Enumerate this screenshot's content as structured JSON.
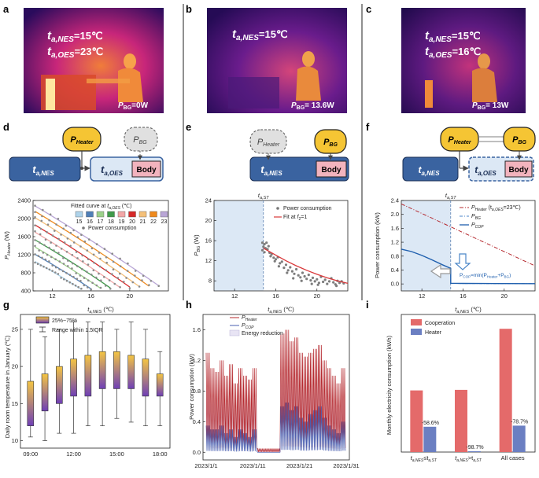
{
  "panel_labels": [
    "a",
    "b",
    "c",
    "d",
    "e",
    "f",
    "g",
    "h",
    "i"
  ],
  "thermal": {
    "a": {
      "line1_var": "t",
      "line1_sub": "a,NES",
      "line1_val": "=15℃",
      "line2_var": "t",
      "line2_sub": "a,OES",
      "line2_val": "=23℃",
      "pbg_val": "=0W"
    },
    "b": {
      "line1_var": "t",
      "line1_sub": "a,NES",
      "line1_val": "=15℃",
      "pbg_val": "= 13.6W"
    },
    "c": {
      "line1_var": "t",
      "line1_sub": "a,NES",
      "line1_val": "=15℃",
      "line2_var": "t",
      "line2_sub": "a,OES",
      "line2_val": "=16℃",
      "pbg_val": "= 13W"
    },
    "pbg_var": "P",
    "pbg_sub": "BG"
  },
  "diagram": {
    "p": "P",
    "heater_sub": "Heater",
    "bg_sub": "BG",
    "t": "t",
    "nes_sub": "a,NES",
    "oes_sub": "a,OES",
    "body": "Body"
  },
  "colors": {
    "heater_fill": "#f5c534",
    "room_blue": "#3a63a0",
    "room_light": "#dce8f5",
    "body_pink": "#f2b3bd",
    "fit_red": "#d9383a",
    "shade": "#dce8f5",
    "cop_blue": "#1f5fae",
    "heater_darkred": "#b5282e"
  },
  "chart_data": [
    {
      "panel": "d",
      "type": "scatter",
      "ylabel_var": "P",
      "ylabel_sub": "Heater",
      "ylabel_unit": " (W)",
      "xlabel_var": "t",
      "xlabel_sub": "a,NES",
      "xlabel_unit": " (℃)",
      "xlim": [
        10,
        24
      ],
      "ylim": [
        400,
        2400
      ],
      "xticks": [
        12,
        16,
        20
      ],
      "yticks": [
        400,
        800,
        1200,
        1600,
        2000,
        2400
      ],
      "legend_title_pre": "Fitted curve at ",
      "legend_title_var": "t",
      "legend_title_sub": "a,OES",
      "legend_title_unit": " (℃)",
      "legend_power": "Power consumption",
      "series": [
        {
          "name": "15",
          "color": "#aed3ea",
          "x0": 10.2,
          "y0": 1050,
          "x1": 15,
          "y1": 430
        },
        {
          "name": "16",
          "color": "#4f7fb8",
          "x0": 10.2,
          "y0": 1210,
          "x1": 16,
          "y1": 445
        },
        {
          "name": "17",
          "color": "#9cd08a",
          "x0": 10.2,
          "y0": 1370,
          "x1": 17,
          "y1": 455
        },
        {
          "name": "18",
          "color": "#3f9a4a",
          "x0": 10.2,
          "y0": 1530,
          "x1": 18,
          "y1": 465
        },
        {
          "name": "19",
          "color": "#f2a7a7",
          "x0": 10.2,
          "y0": 1700,
          "x1": 19,
          "y1": 475
        },
        {
          "name": "20",
          "color": "#d62a2a",
          "x0": 10.2,
          "y0": 1860,
          "x1": 20,
          "y1": 485
        },
        {
          "name": "21",
          "color": "#f4c07a",
          "x0": 10.2,
          "y0": 2020,
          "x1": 21,
          "y1": 495
        },
        {
          "name": "22",
          "color": "#ef8a1e",
          "x0": 10.2,
          "y0": 2160,
          "x1": 22,
          "y1": 505
        },
        {
          "name": "23",
          "color": "#b9a6d6",
          "x0": 10.2,
          "y0": 2280,
          "x1": 23,
          "y1": 515
        }
      ]
    },
    {
      "panel": "e",
      "type": "scatter",
      "ylabel_var": "P",
      "ylabel_sub": "BG",
      "ylabel_unit": " (W)",
      "xlabel_var": "t",
      "xlabel_sub": "a,NES",
      "xlabel_unit": " (℃)",
      "xlim": [
        10,
        23
      ],
      "ylim": [
        6,
        24
      ],
      "xticks": [
        12,
        16,
        20
      ],
      "yticks": [
        8,
        12,
        16,
        20,
        24
      ],
      "tst_label_var": "t",
      "tst_label_sub": "a,ST",
      "tst": 14.8,
      "legend_points": "Power consumption",
      "legend_fit_pre": "Fit at ",
      "legend_fit_var": "f",
      "legend_fit_sub": "2",
      "legend_fit_post": "=1",
      "fit": {
        "x": [
          14.8,
          16,
          17,
          18,
          19,
          20,
          21,
          22,
          23
        ],
        "y": [
          14.5,
          13.1,
          12.0,
          11.0,
          10.1,
          9.3,
          8.6,
          8.0,
          7.5
        ]
      },
      "points": [
        [
          14.7,
          15.6
        ],
        [
          14.9,
          15.3
        ],
        [
          14.8,
          14.8
        ],
        [
          15.0,
          14.5
        ],
        [
          14.7,
          14.1
        ],
        [
          15.1,
          15.6
        ],
        [
          15.2,
          14.3
        ],
        [
          14.9,
          13.7
        ],
        [
          15.3,
          14.9
        ],
        [
          15.4,
          13.6
        ],
        [
          15.6,
          13.3
        ],
        [
          15.5,
          12.9
        ],
        [
          15.8,
          12.6
        ],
        [
          16.0,
          12.3
        ],
        [
          15.9,
          11.9
        ],
        [
          16.2,
          12.7
        ],
        [
          16.4,
          11.5
        ],
        [
          16.3,
          10.9
        ],
        [
          16.6,
          11.8
        ],
        [
          16.8,
          10.6
        ],
        [
          17.0,
          11.2
        ],
        [
          17.2,
          10.1
        ],
        [
          17.1,
          9.6
        ],
        [
          17.4,
          10.7
        ],
        [
          17.6,
          9.9
        ],
        [
          17.8,
          9.4
        ],
        [
          18.0,
          10.3
        ],
        [
          18.2,
          9.1
        ],
        [
          18.4,
          8.7
        ],
        [
          18.6,
          9.6
        ],
        [
          18.8,
          8.9
        ],
        [
          19.0,
          8.4
        ],
        [
          19.2,
          9.2
        ],
        [
          19.4,
          8.1
        ],
        [
          19.6,
          8.6
        ],
        [
          19.8,
          7.9
        ],
        [
          20.0,
          8.3
        ],
        [
          20.2,
          7.6
        ],
        [
          20.4,
          8.8
        ],
        [
          20.6,
          7.8
        ],
        [
          20.8,
          8.2
        ],
        [
          21.0,
          7.4
        ],
        [
          21.2,
          7.9
        ],
        [
          21.4,
          8.5
        ],
        [
          21.6,
          7.7
        ],
        [
          21.8,
          7.3
        ],
        [
          22.0,
          8.0
        ],
        [
          22.2,
          7.6
        ],
        [
          22.4,
          7.9
        ],
        [
          22.6,
          7.5
        ],
        [
          20.1,
          7.2
        ],
        [
          19.5,
          7.4
        ],
        [
          18.5,
          8.0
        ],
        [
          17.7,
          8.5
        ],
        [
          21.9,
          7.0
        ]
      ]
    },
    {
      "panel": "f",
      "type": "line",
      "ylabel": "Power consumption (kW)",
      "xlabel_var": "t",
      "xlabel_sub": "a,NES",
      "xlabel_unit": " (℃)",
      "xlim": [
        10,
        23
      ],
      "ylim": [
        -0.2,
        2.4
      ],
      "xticks": [
        12,
        16,
        20
      ],
      "yticks": [
        0.0,
        0.4,
        0.8,
        1.2,
        1.6,
        2.0,
        2.4
      ],
      "tst_label_var": "t",
      "tst_label_sub": "a,ST",
      "tst": 14.8,
      "legend": [
        {
          "var": "P",
          "sub": "Heater",
          "post": " (t",
          "post_sub": "a,OES",
          "post2": "=23℃)"
        },
        {
          "var": "P",
          "sub": "BG",
          "post": "",
          "post_sub": "",
          "post2": ""
        },
        {
          "var": "P",
          "sub": "COP",
          "post": "",
          "post_sub": "",
          "post2": ""
        }
      ],
      "annotation_pre": "P",
      "annotation_sub": "COP",
      "annotation_post": "=min(P",
      "annotation_sub2": "Heater",
      "annotation_mid": "+P",
      "annotation_sub3": "BG",
      "annotation_end": ")",
      "heater": {
        "x": [
          10,
          23
        ],
        "y": [
          2.3,
          0.52
        ]
      },
      "bg": {
        "x": [
          14.8,
          16,
          18,
          20,
          23
        ],
        "y": [
          0.015,
          0.013,
          0.011,
          0.009,
          0.008
        ]
      },
      "cop": {
        "x": [
          10,
          11,
          12,
          13,
          14,
          14.8,
          14.8,
          16,
          18,
          20,
          23
        ],
        "y": [
          1.0,
          0.93,
          0.82,
          0.69,
          0.55,
          0.45,
          0.02,
          0.015,
          0.012,
          0.01,
          0.009
        ]
      }
    },
    {
      "panel": "g",
      "type": "box",
      "ylabel": "Daily room temperature in January (℃)",
      "xticklabels": [
        "09:00",
        "12:00",
        "15:00",
        "18:00"
      ],
      "ylim": [
        9,
        27
      ],
      "yticks": [
        10,
        15,
        20,
        25
      ],
      "legend_box": "25%~75%",
      "legend_range": "Range within 1.5IQR",
      "boxes": [
        {
          "q1": 12,
          "q3": 18,
          "min": 10.5,
          "max": 25
        },
        {
          "q1": 14,
          "q3": 19,
          "min": 10,
          "max": 24
        },
        {
          "q1": 15,
          "q3": 20,
          "min": 11,
          "max": 25
        },
        {
          "q1": 16,
          "q3": 21,
          "min": 11,
          "max": 26
        },
        {
          "q1": 16,
          "q3": 21.5,
          "min": 12,
          "max": 26
        },
        {
          "q1": 17,
          "q3": 22,
          "min": 12,
          "max": 26
        },
        {
          "q1": 17,
          "q3": 22,
          "min": 13,
          "max": 25
        },
        {
          "q1": 17,
          "q3": 21.5,
          "min": 12.5,
          "max": 26
        },
        {
          "q1": 16,
          "q3": 21,
          "min": 12,
          "max": 25
        },
        {
          "q1": 16,
          "q3": 19,
          "min": 12,
          "max": 22
        }
      ]
    },
    {
      "panel": "h",
      "type": "line",
      "ylabel": "Power consumption (kW)",
      "xticklabels": [
        "2023/1/1",
        "2023/1/11",
        "2023/1/21",
        "2023/1/31"
      ],
      "xlim": [
        1,
        31
      ],
      "ylim": [
        -0.1,
        1.8
      ],
      "yticks": [
        0.0,
        0.4,
        0.8,
        1.2,
        1.6
      ],
      "legend": [
        {
          "var": "P",
          "sub": "Heater"
        },
        {
          "var": "P",
          "sub": "COP"
        },
        {
          "var": "",
          "sub": "",
          "text": "Energy reduction"
        }
      ],
      "heater_days": [
        1.3,
        1.1,
        1.05,
        1.2,
        1.0,
        1.15,
        0.9,
        1.1,
        1.0,
        0.95,
        1.1,
        0.05,
        0.05,
        0.05,
        0.05,
        0.05,
        1.55,
        1.6,
        1.45,
        1.5,
        1.3,
        1.25,
        1.3,
        1.35,
        1.4,
        1.2,
        1.1,
        1.0,
        0.9,
        1.1
      ],
      "cop_days": [
        0.35,
        0.3,
        0.3,
        0.35,
        0.25,
        0.3,
        0.2,
        0.3,
        0.25,
        0.2,
        0.3,
        0.0,
        0.0,
        0.0,
        0.0,
        0.0,
        0.6,
        0.65,
        0.55,
        0.6,
        0.45,
        0.4,
        0.5,
        0.55,
        0.6,
        0.45,
        0.35,
        0.3,
        0.25,
        0.4
      ]
    },
    {
      "panel": "i",
      "type": "bar",
      "ylabel": "Monthly electricity consumption (kWh)",
      "ylim": [
        0,
        250
      ],
      "yticks": [],
      "categories": [
        {
          "pre": "t",
          "sub": "a,NES",
          "op": "≤t",
          "sub2": "a,ST"
        },
        {
          "pre": "t",
          "sub": "a,NES",
          "op": ">t",
          "sub2": "a,ST"
        },
        {
          "pre": "All cases",
          "sub": "",
          "op": "",
          "sub2": ""
        }
      ],
      "series": [
        {
          "name": "Cooperation",
          "color": "#e46a6a",
          "values": [
            112,
            113,
            224
          ]
        },
        {
          "name": "Heater",
          "color": "#6b7fc2",
          "values": [
            46,
            1.5,
            48
          ]
        }
      ],
      "labels": [
        "-58.6%",
        "-98.7%",
        "-78.7%"
      ]
    }
  ]
}
